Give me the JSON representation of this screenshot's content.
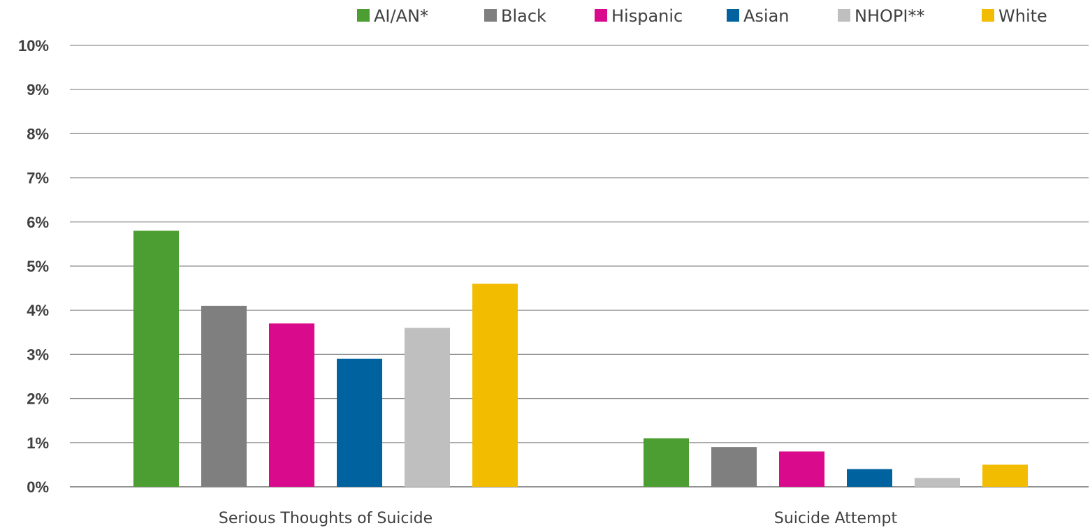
{
  "chart_data": {
    "type": "bar",
    "categories": [
      "Serious Thoughts of Suicide",
      "Suicide Attempt"
    ],
    "series": [
      {
        "name": "AI/AN*",
        "color": "#4c9e32",
        "values": [
          5.8,
          1.1
        ]
      },
      {
        "name": "Black",
        "color": "#7f7f7f",
        "values": [
          4.1,
          0.9
        ]
      },
      {
        "name": "Hispanic",
        "color": "#d90b8c",
        "values": [
          3.7,
          0.8
        ]
      },
      {
        "name": "Asian",
        "color": "#00629f",
        "values": [
          2.9,
          0.4
        ]
      },
      {
        "name": "NHOPI**",
        "color": "#bfbfbf",
        "values": [
          3.6,
          0.2
        ]
      },
      {
        "name": "White",
        "color": "#f2bc00",
        "values": [
          4.6,
          0.5
        ]
      }
    ],
    "y_ticks": [
      "0%",
      "1%",
      "2%",
      "3%",
      "4%",
      "5%",
      "6%",
      "7%",
      "8%",
      "9%",
      "10%"
    ],
    "ylim": [
      0,
      10
    ],
    "y_unit": "%",
    "grid": true,
    "legend_position": "top-right"
  }
}
